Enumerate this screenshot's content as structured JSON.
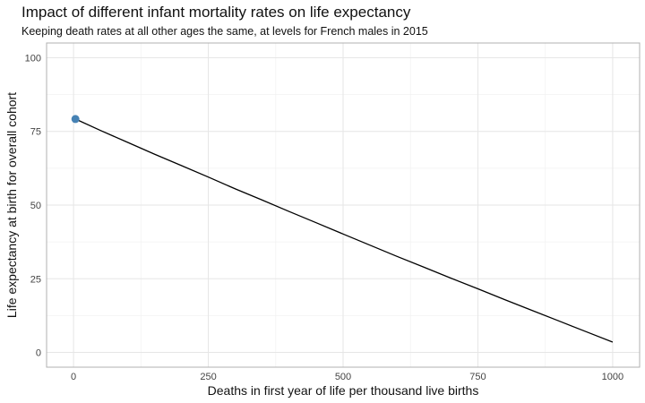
{
  "chart_data": {
    "type": "line",
    "title": "Impact of different infant mortality rates on life expectancy",
    "subtitle": "Keeping death rates at all other ages the same, at levels for French males in 2015",
    "xlabel": "Deaths in first year of life per thousand live births",
    "ylabel": "Life expectancy at birth for overall cohort",
    "xlim": [
      -50,
      1050
    ],
    "ylim": [
      -5,
      105
    ],
    "x_ticks": [
      0,
      250,
      500,
      750,
      1000
    ],
    "y_ticks": [
      0,
      25,
      50,
      75,
      100
    ],
    "grid": true,
    "series": [
      {
        "x": [
          3.5,
          50,
          100,
          150,
          200,
          250,
          300,
          350,
          400,
          450,
          500,
          550,
          600,
          650,
          700,
          750,
          800,
          850,
          900,
          950,
          1000
        ],
        "y": [
          79.2,
          75.3,
          71.3,
          67.3,
          63.4,
          59.5,
          55.5,
          51.7,
          47.8,
          44.0,
          40.2,
          36.4,
          32.6,
          28.9,
          25.2,
          21.6,
          17.9,
          14.3,
          10.7,
          7.1,
          3.5
        ],
        "color": "#000000"
      }
    ],
    "highlight_point": {
      "x": 3.5,
      "y": 79.2,
      "color": "#4682b4"
    }
  }
}
